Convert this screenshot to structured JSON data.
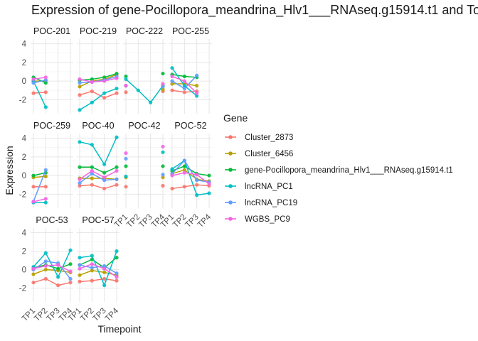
{
  "chart_data": {
    "type": "line",
    "title": "Expression of gene-Pocillopora_meandrina_Hlv1___RNAseq.g15914.t1 and To",
    "xlabel": "Timepoint",
    "ylabel": "Expression",
    "timepoints": [
      "TP1",
      "TP2",
      "TP3",
      "TP4"
    ],
    "y_ticks": [
      -2,
      0,
      2,
      4
    ],
    "ylim": [
      -3.5,
      4.5
    ],
    "grid": true,
    "legend": {
      "title": "Gene",
      "position": "right"
    },
    "genes": [
      {
        "name": "Cluster_2873",
        "color": "#F8766D"
      },
      {
        "name": "Cluster_6456",
        "color": "#B79F00"
      },
      {
        "name": "gene-Pocillopora_meandrina_Hlv1___RNAseq.g15914.t1",
        "color": "#00BA38"
      },
      {
        "name": "lncRNA_PC1",
        "color": "#00BFC4"
      },
      {
        "name": "lncRNA_PC19",
        "color": "#619CFF"
      },
      {
        "name": "WGBS_PC9",
        "color": "#F564E3"
      }
    ],
    "panels": [
      {
        "name": "POC-201",
        "series": [
          [
            -1.3,
            -1.2,
            null,
            null
          ],
          [
            0.0,
            0.0,
            null,
            null
          ],
          [
            0.4,
            -0.2,
            null,
            null
          ],
          [
            0.0,
            -2.8,
            null,
            null
          ],
          [
            -0.2,
            0.1,
            null,
            null
          ],
          [
            0.2,
            0.4,
            null,
            null
          ]
        ]
      },
      {
        "name": "POC-219",
        "series": [
          [
            -1.5,
            -1.1,
            -1.8,
            -1.3
          ],
          [
            -0.6,
            0.0,
            0.2,
            0.7
          ],
          [
            0.1,
            0.2,
            0.4,
            0.8
          ],
          [
            -3.1,
            -2.3,
            -1.3,
            -0.8
          ],
          [
            -0.2,
            -0.1,
            0.1,
            0.5
          ],
          [
            0.2,
            -0.1,
            0.0,
            0.3
          ]
        ]
      },
      {
        "name": "POC-222",
        "series": [
          [
            -1.2,
            null,
            null,
            -1.1
          ],
          [
            -0.5,
            null,
            null,
            -0.9
          ],
          [
            0.5,
            null,
            null,
            0.8
          ],
          [
            0.2,
            -1.0,
            -2.3,
            -0.5
          ],
          [
            -0.5,
            null,
            null,
            -0.6
          ],
          [
            -0.5,
            null,
            null,
            -0.3
          ]
        ]
      },
      {
        "name": "POC-255",
        "series": [
          [
            -1.0,
            -1.2,
            -1.1,
            null
          ],
          [
            -0.3,
            -0.3,
            -0.5,
            null
          ],
          [
            0.7,
            0.5,
            0.4,
            null
          ],
          [
            1.4,
            -0.5,
            -1.6,
            null
          ],
          [
            0.0,
            -0.8,
            0.6,
            null
          ],
          [
            0.5,
            0.0,
            -1.3,
            null
          ]
        ]
      },
      {
        "name": "POC-259",
        "series": [
          [
            -1.2,
            -1.2,
            null,
            null
          ],
          [
            -0.2,
            -0.1,
            null,
            null
          ],
          [
            0.0,
            0.3,
            null,
            null
          ],
          [
            -2.9,
            -2.9,
            null,
            null
          ],
          [
            -2.8,
            0.6,
            null,
            null
          ],
          [
            -2.8,
            -2.5,
            null,
            null
          ]
        ]
      },
      {
        "name": "POC-40",
        "series": [
          [
            -1.1,
            -1.0,
            -1.4,
            -1.0
          ],
          [
            -0.3,
            -0.3,
            -0.3,
            -0.4
          ],
          [
            0.9,
            0.9,
            0.3,
            0.9
          ],
          [
            3.6,
            3.3,
            1.2,
            4.1
          ],
          [
            -0.8,
            0.2,
            -0.5,
            -0.4
          ],
          [
            -0.4,
            0.5,
            -0.2,
            0.5
          ]
        ]
      },
      {
        "name": "POC-42",
        "series": [
          [
            -1.2,
            null,
            null,
            -1.1
          ],
          [
            -0.2,
            null,
            null,
            -0.2
          ],
          [
            1.0,
            null,
            null,
            1.0
          ],
          [
            -0.1,
            null,
            null,
            2.5
          ],
          [
            1.8,
            null,
            null,
            0.1
          ],
          [
            2.4,
            null,
            null,
            3.1
          ]
        ]
      },
      {
        "name": "POC-52",
        "series": [
          [
            -1.4,
            -1.2,
            -1.0,
            -1.1
          ],
          [
            0.2,
            0.6,
            -0.4,
            -0.6
          ],
          [
            0.5,
            1.0,
            0.2,
            0.0
          ],
          [
            0.7,
            1.6,
            -2.1,
            -1.9
          ],
          [
            0.2,
            1.6,
            -0.5,
            -0.7
          ],
          [
            0.0,
            0.3,
            0.1,
            -0.9
          ]
        ]
      },
      {
        "name": "POC-53",
        "series": [
          [
            -1.4,
            -1.0,
            -1.7,
            -1.4
          ],
          [
            -0.5,
            0.0,
            -0.1,
            -0.3
          ],
          [
            0.2,
            0.5,
            0.1,
            0.6
          ],
          [
            0.3,
            1.8,
            -0.8,
            2.1
          ],
          [
            0.0,
            0.9,
            0.7,
            -1.0
          ],
          [
            0.1,
            0.4,
            0.5,
            -0.2
          ]
        ]
      },
      {
        "name": "POC-57",
        "series": [
          [
            -1.3,
            -1.2,
            -1.0,
            -1.2
          ],
          [
            -0.6,
            -0.1,
            -0.3,
            -0.6
          ],
          [
            0.5,
            1.1,
            0.2,
            1.3
          ],
          [
            1.3,
            1.5,
            -1.7,
            2.0
          ],
          [
            0.5,
            0.2,
            0.4,
            -0.4
          ],
          [
            0.1,
            0.6,
            0.1,
            -0.8
          ]
        ]
      }
    ]
  }
}
